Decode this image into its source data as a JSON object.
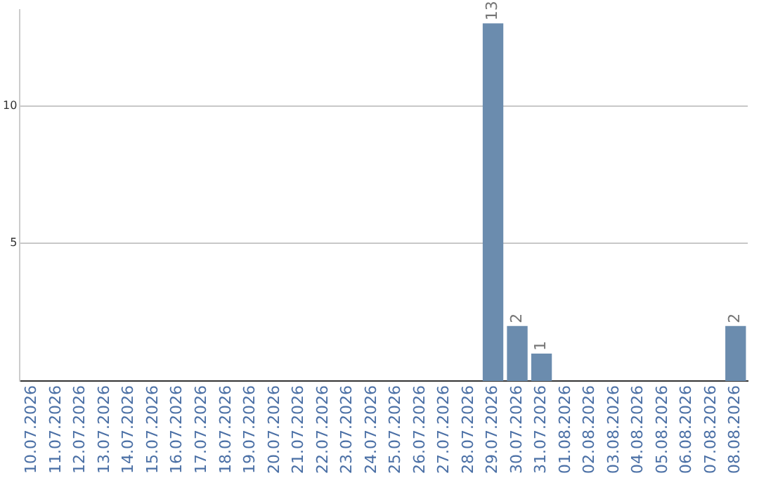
{
  "chart_data": {
    "type": "bar",
    "categories": [
      "10.07.2026",
      "11.07.2026",
      "12.07.2026",
      "13.07.2026",
      "14.07.2026",
      "15.07.2026",
      "16.07.2026",
      "17.07.2026",
      "18.07.2026",
      "19.07.2026",
      "20.07.2026",
      "21.07.2026",
      "22.07.2026",
      "23.07.2026",
      "24.07.2026",
      "25.07.2026",
      "26.07.2026",
      "27.07.2026",
      "28.07.2026",
      "29.07.2026",
      "30.07.2026",
      "31.07.2026",
      "01.08.2026",
      "02.08.2026",
      "03.08.2026",
      "04.08.2026",
      "05.08.2026",
      "06.08.2026",
      "07.08.2026",
      "08.08.2026"
    ],
    "values": [
      0,
      0,
      0,
      0,
      0,
      0,
      0,
      0,
      0,
      0,
      0,
      0,
      0,
      0,
      0,
      0,
      0,
      0,
      0,
      13,
      2,
      1,
      0,
      0,
      0,
      0,
      0,
      0,
      0,
      2
    ],
    "value_labels": [
      null,
      null,
      null,
      null,
      null,
      null,
      null,
      null,
      null,
      null,
      null,
      null,
      null,
      null,
      null,
      null,
      null,
      null,
      null,
      "13",
      "2",
      "1",
      null,
      null,
      null,
      null,
      null,
      null,
      null,
      "2"
    ],
    "color": "#6b8cae",
    "ylim": [
      0,
      13.5
    ],
    "yticks": [
      5,
      10
    ],
    "grid": "y",
    "legend": false
  }
}
